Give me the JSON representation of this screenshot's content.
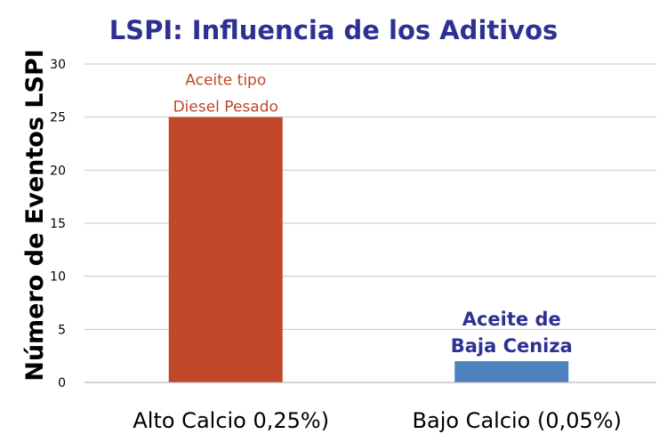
{
  "chart_data": {
    "type": "bar",
    "title": "LSPI: Influencia de los Aditivos",
    "ylabel": "Número de Eventos LSPI",
    "xlabel": "",
    "ylim": [
      0,
      30
    ],
    "yticks": [
      0,
      5,
      10,
      15,
      20,
      25,
      30
    ],
    "grid": true,
    "categories": [
      "Alto Calcio 0,25%)",
      "Bajo Calcio (0,05%)"
    ],
    "values": [
      25,
      2
    ],
    "bar_colors": [
      "#c0472a",
      "#4f81bd"
    ],
    "bar_labels": [
      {
        "lines": [
          "Aceite tipo",
          "Diesel Pesado"
        ],
        "color": "#c0472a",
        "weight": "normal"
      },
      {
        "lines": [
          "Aceite de",
          "Baja Ceniza"
        ],
        "color": "#2e3192",
        "weight": "bold"
      }
    ],
    "colors": {
      "title": "#2e3192"
    }
  }
}
